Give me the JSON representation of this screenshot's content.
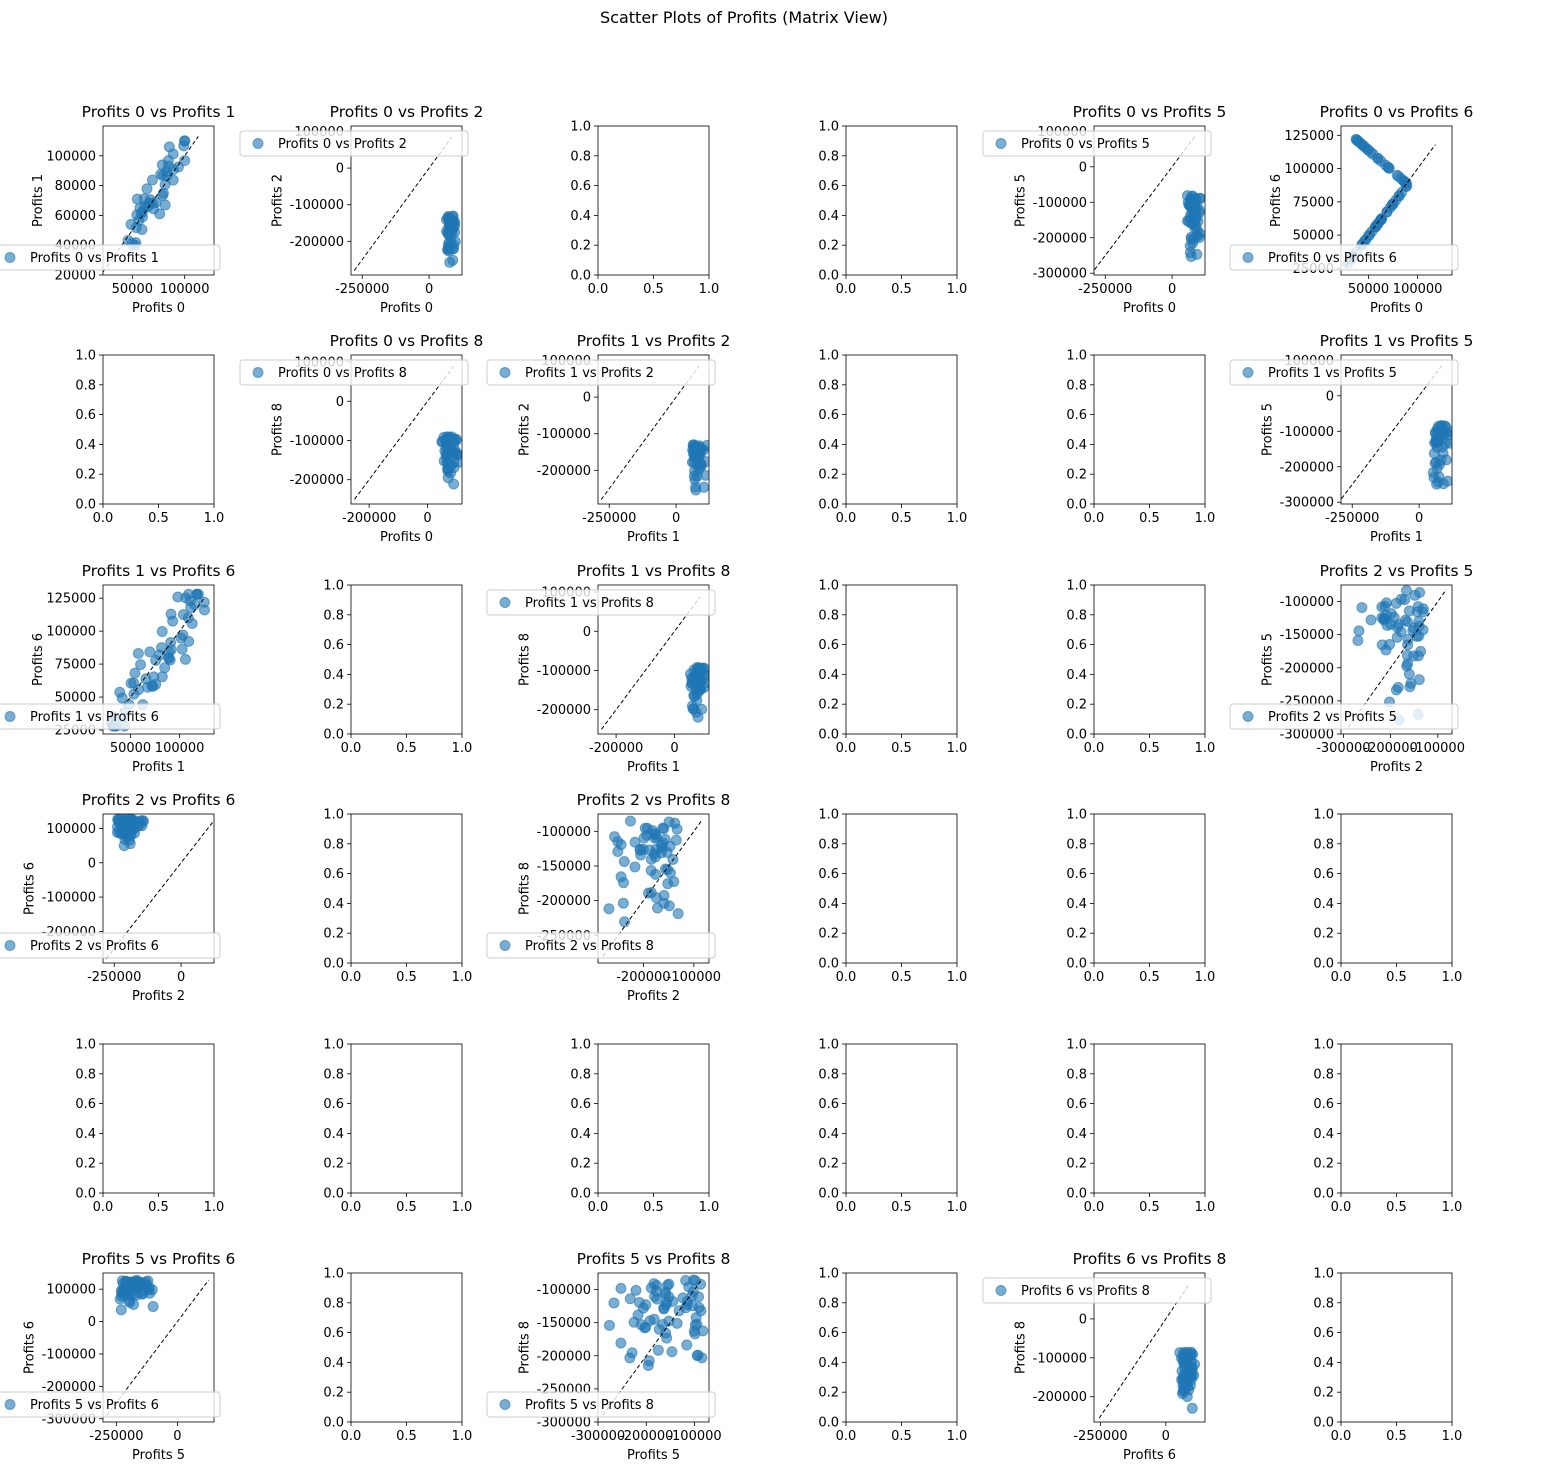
{
  "figure": {
    "suptitle": "Scatter Plots of Profits (Matrix View)",
    "point_color": "#1f77b4",
    "reference_line_color": "#000000",
    "legend_edge_color": "#cccccc",
    "empty_axis_ticks": [
      "0.0",
      "0.5",
      "1.0"
    ],
    "empty_axis_yticks": [
      "0.0",
      "0.2",
      "0.4",
      "0.6",
      "0.8",
      "1.0"
    ]
  },
  "chart_data": [
    {
      "type": "scatter",
      "row": 0,
      "col": 0,
      "title": "Profits 0 vs Profits 1",
      "xlabel": "Profits 0",
      "ylabel": "Profits 1",
      "legend": "Profits 0 vs Profits 1",
      "legend_loc": "lower-right",
      "xlim": [
        22000,
        128000
      ],
      "ylim": [
        20000,
        120000
      ],
      "xticks": [
        50000,
        100000
      ],
      "yticks": [
        20000,
        40000,
        60000,
        80000,
        100000
      ],
      "diag": [
        [
          22000,
          22000
        ],
        [
          113000,
          113000
        ]
      ],
      "cluster": {
        "cx": [
          45000,
          100000
        ],
        "cy": [
          40000,
          110000
        ],
        "n": 45,
        "mode": "corr"
      }
    },
    {
      "type": "scatter",
      "row": 0,
      "col": 1,
      "title": "Profits 0 vs Profits 2",
      "xlabel": "Profits 0",
      "ylabel": "Profits 2",
      "legend": "Profits 0 vs Profits 2",
      "legend_loc": "upper-right",
      "xlim": [
        -292000,
        123000
      ],
      "ylim": [
        -292000,
        115000
      ],
      "xticks": [
        -250000,
        0
      ],
      "yticks": [
        -200000,
        -100000,
        0,
        100000
      ],
      "diag": [
        [
          -280000,
          -280000
        ],
        [
          85000,
          85000
        ]
      ],
      "cluster": {
        "cx": [
          50000,
          110000
        ],
        "cy": [
          -280000,
          -130000
        ],
        "n": 50,
        "mode": "blob"
      }
    },
    {
      "type": "empty",
      "row": 0,
      "col": 2
    },
    {
      "type": "empty",
      "row": 0,
      "col": 3
    },
    {
      "type": "scatter",
      "row": 0,
      "col": 4,
      "title": "Profits 0 vs Profits 5",
      "xlabel": "Profits 0",
      "ylabel": "Profits 5",
      "legend": "Profits 0 vs Profits 5",
      "legend_loc": "upper-right",
      "xlim": [
        -292000,
        123000
      ],
      "ylim": [
        -305000,
        115000
      ],
      "xticks": [
        -250000,
        0
      ],
      "yticks": [
        -300000,
        -200000,
        -100000,
        0,
        100000
      ],
      "diag": [
        [
          -290000,
          -290000
        ],
        [
          88000,
          88000
        ]
      ],
      "cluster": {
        "cx": [
          40000,
          115000
        ],
        "cy": [
          -290000,
          -80000
        ],
        "n": 55,
        "mode": "blob"
      }
    },
    {
      "type": "scatter",
      "row": 0,
      "col": 5,
      "title": "Profits 0 vs Profits 6",
      "xlabel": "Profits 0",
      "ylabel": "Profits 6",
      "legend": "Profits 0 vs Profits 6",
      "legend_loc": "lower-right",
      "xlim": [
        22000,
        135000
      ],
      "ylim": [
        20000,
        132000
      ],
      "xticks": [
        50000,
        100000
      ],
      "yticks": [
        25000,
        50000,
        75000,
        100000,
        125000
      ],
      "diag": [
        [
          27000,
          27000
        ],
        [
          118000,
          118000
        ]
      ],
      "cluster": {
        "cx": [
          28000,
          90000
        ],
        "cy": [
          28000,
          128000
        ],
        "n": 60,
        "mode": "vee"
      }
    },
    {
      "type": "empty",
      "row": 1,
      "col": 0
    },
    {
      "type": "scatter",
      "row": 1,
      "col": 1,
      "title": "Profits 0 vs Profits 8",
      "xlabel": "Profits 0",
      "ylabel": "Profits 8",
      "legend": "Profits 0 vs Profits 8",
      "legend_loc": "upper-right",
      "xlim": [
        -262000,
        118000
      ],
      "ylim": [
        -262000,
        118000
      ],
      "xticks": [
        -200000,
        0
      ],
      "yticks": [
        -200000,
        -100000,
        0,
        100000
      ],
      "diag": [
        [
          -250000,
          -250000
        ],
        [
          88000,
          88000
        ]
      ],
      "cluster": {
        "cx": [
          30000,
          110000
        ],
        "cy": [
          -245000,
          -90000
        ],
        "n": 50,
        "mode": "blob"
      }
    },
    {
      "type": "scatter",
      "row": 1,
      "col": 2,
      "title": "Profits 1 vs Profits 2",
      "xlabel": "Profits 1",
      "ylabel": "Profits 2",
      "legend": "Profits 1 vs Profits 2",
      "legend_loc": "upper-right",
      "xlim": [
        -292000,
        123000
      ],
      "ylim": [
        -292000,
        115000
      ],
      "xticks": [
        -250000,
        0
      ],
      "yticks": [
        -200000,
        -100000,
        0,
        100000
      ],
      "diag": [
        [
          -280000,
          -280000
        ],
        [
          85000,
          85000
        ]
      ],
      "cluster": {
        "cx": [
          40000,
          120000
        ],
        "cy": [
          -280000,
          -130000
        ],
        "n": 50,
        "mode": "blob"
      }
    },
    {
      "type": "empty",
      "row": 1,
      "col": 3
    },
    {
      "type": "empty",
      "row": 1,
      "col": 4
    },
    {
      "type": "scatter",
      "row": 1,
      "col": 5,
      "title": "Profits 1 vs Profits 5",
      "xlabel": "Profits 1",
      "ylabel": "Profits 5",
      "legend": "Profits 1 vs Profits 5",
      "legend_loc": "upper-right",
      "xlim": [
        -292000,
        123000
      ],
      "ylim": [
        -305000,
        115000
      ],
      "xticks": [
        -250000,
        0
      ],
      "yticks": [
        -300000,
        -200000,
        -100000,
        0,
        100000
      ],
      "diag": [
        [
          -290000,
          -290000
        ],
        [
          88000,
          88000
        ]
      ],
      "cluster": {
        "cx": [
          30000,
          120000
        ],
        "cy": [
          -290000,
          -80000
        ],
        "n": 55,
        "mode": "blob"
      }
    },
    {
      "type": "scatter",
      "row": 2,
      "col": 0,
      "title": "Profits 1 vs Profits 6",
      "xlabel": "Profits 1",
      "ylabel": "Profits 6",
      "legend": "Profits 1 vs Profits 6",
      "legend_loc": "lower-right",
      "xlim": [
        22000,
        135000
      ],
      "ylim": [
        22000,
        135000
      ],
      "xticks": [
        50000,
        100000
      ],
      "yticks": [
        25000,
        50000,
        75000,
        100000,
        125000
      ],
      "diag": [
        [
          27000,
          27000
        ],
        [
          125000,
          125000
        ]
      ],
      "cluster": {
        "cx": [
          30000,
          128000
        ],
        "cy": [
          28000,
          128000
        ],
        "n": 60,
        "mode": "corr"
      }
    },
    {
      "type": "empty",
      "row": 2,
      "col": 1
    },
    {
      "type": "scatter",
      "row": 2,
      "col": 2,
      "title": "Profits 1 vs Profits 8",
      "xlabel": "Profits 1",
      "ylabel": "Profits 8",
      "legend": "Profits 1 vs Profits 8",
      "legend_loc": "upper-right",
      "xlim": [
        -262000,
        118000
      ],
      "ylim": [
        -262000,
        118000
      ],
      "xticks": [
        -200000,
        0
      ],
      "yticks": [
        -200000,
        -100000,
        0,
        100000
      ],
      "diag": [
        [
          -250000,
          -250000
        ],
        [
          88000,
          88000
        ]
      ],
      "cluster": {
        "cx": [
          30000,
          115000
        ],
        "cy": [
          -245000,
          -90000
        ],
        "n": 50,
        "mode": "blob"
      }
    },
    {
      "type": "empty",
      "row": 2,
      "col": 3
    },
    {
      "type": "empty",
      "row": 2,
      "col": 4
    },
    {
      "type": "scatter",
      "row": 2,
      "col": 5,
      "title": "Profits 2 vs Profits 5",
      "xlabel": "Profits 2",
      "ylabel": "Profits 5",
      "legend": "Profits 2 vs Profits 5",
      "legend_loc": "lower-right",
      "xlim": [
        -305000,
        -70000
      ],
      "ylim": [
        -300000,
        -75000
      ],
      "xticks": [
        -300000,
        -200000,
        -100000
      ],
      "yticks": [
        -300000,
        -250000,
        -200000,
        -150000,
        -100000
      ],
      "diag": [
        [
          -290000,
          -290000
        ],
        [
          -82000,
          -82000
        ]
      ],
      "cluster": {
        "cx": [
          -290000,
          -130000
        ],
        "cy": [
          -290000,
          -80000
        ],
        "n": 60,
        "mode": "spread"
      }
    },
    {
      "type": "scatter",
      "row": 3,
      "col": 0,
      "title": "Profits 2 vs Profits 6",
      "xlabel": "Profits 2",
      "ylabel": "Profits 6",
      "legend": "Profits 2 vs Profits 6",
      "legend_loc": "lower-right",
      "xlim": [
        -292000,
        123000
      ],
      "ylim": [
        -292000,
        142000
      ],
      "xticks": [
        -250000,
        0
      ],
      "yticks": [
        -200000,
        -100000,
        0,
        100000
      ],
      "diag": [
        [
          -280000,
          -280000
        ],
        [
          125000,
          125000
        ]
      ],
      "cluster": {
        "cx": [
          -280000,
          -130000
        ],
        "cy": [
          30000,
          128000
        ],
        "n": 60,
        "mode": "blob"
      }
    },
    {
      "type": "empty",
      "row": 3,
      "col": 1
    },
    {
      "type": "scatter",
      "row": 3,
      "col": 2,
      "title": "Profits 2 vs Profits 8",
      "xlabel": "Profits 2",
      "ylabel": "Profits 8",
      "legend": "Profits 2 vs Profits 8",
      "legend_loc": "lower-right",
      "xlim": [
        -290000,
        -70000
      ],
      "ylim": [
        -290000,
        -75000
      ],
      "xticks": [
        -200000,
        -100000
      ],
      "yticks": [
        -250000,
        -200000,
        -150000,
        -100000
      ],
      "diag": [
        [
          -280000,
          -280000
        ],
        [
          -85000,
          -85000
        ]
      ],
      "cluster": {
        "cx": [
          -280000,
          -130000
        ],
        "cy": [
          -250000,
          -85000
        ],
        "n": 60,
        "mode": "spread"
      }
    },
    {
      "type": "empty",
      "row": 3,
      "col": 3
    },
    {
      "type": "empty",
      "row": 3,
      "col": 4
    },
    {
      "type": "empty",
      "row": 3,
      "col": 5
    },
    {
      "type": "empty",
      "row": 4,
      "col": 0
    },
    {
      "type": "empty",
      "row": 4,
      "col": 1
    },
    {
      "type": "empty",
      "row": 4,
      "col": 2
    },
    {
      "type": "empty",
      "row": 4,
      "col": 3
    },
    {
      "type": "empty",
      "row": 4,
      "col": 4
    },
    {
      "type": "empty",
      "row": 4,
      "col": 5
    },
    {
      "type": "scatter",
      "row": 5,
      "col": 0,
      "title": "Profits 5 vs Profits 6",
      "xlabel": "Profits 5",
      "ylabel": "Profits 6",
      "legend": "Profits 5 vs Profits 6",
      "legend_loc": "lower-right",
      "xlim": [
        -305000,
        150000
      ],
      "ylim": [
        -310000,
        150000
      ],
      "xticks": [
        -250000,
        0
      ],
      "yticks": [
        -300000,
        -200000,
        -100000,
        0,
        100000
      ],
      "diag": [
        [
          -290000,
          -290000
        ],
        [
          128000,
          128000
        ]
      ],
      "cluster": {
        "cx": [
          -290000,
          -80000
        ],
        "cy": [
          30000,
          128000
        ],
        "n": 60,
        "mode": "blob"
      }
    },
    {
      "type": "empty",
      "row": 5,
      "col": 1
    },
    {
      "type": "scatter",
      "row": 5,
      "col": 2,
      "title": "Profits 5 vs Profits 8",
      "xlabel": "Profits 5",
      "ylabel": "Profits 8",
      "legend": "Profits 5 vs Profits 8",
      "legend_loc": "lower-right",
      "xlim": [
        -300000,
        -70000
      ],
      "ylim": [
        -300000,
        -75000
      ],
      "xticks": [
        -300000,
        -200000,
        -100000
      ],
      "yticks": [
        -300000,
        -250000,
        -200000,
        -150000,
        -100000
      ],
      "diag": [
        [
          -290000,
          -290000
        ],
        [
          -85000,
          -85000
        ]
      ],
      "cluster": {
        "cx": [
          -290000,
          -80000
        ],
        "cy": [
          -250000,
          -85000
        ],
        "n": 70,
        "mode": "spread"
      }
    },
    {
      "type": "empty",
      "row": 5,
      "col": 3
    },
    {
      "type": "scatter",
      "row": 5,
      "col": 4,
      "title": "Profits 6 vs Profits 8",
      "xlabel": "Profits 6",
      "ylabel": "Profits 8",
      "legend": "Profits 6 vs Profits 8",
      "legend_loc": "upper-right",
      "xlim": [
        -275000,
        150000
      ],
      "ylim": [
        -265000,
        118000
      ],
      "xticks": [
        -250000,
        0
      ],
      "yticks": [
        -200000,
        -100000,
        0
      ],
      "diag": [
        [
          -255000,
          -255000
        ],
        [
          90000,
          90000
        ]
      ],
      "cluster": {
        "cx": [
          30000,
          128000
        ],
        "cy": [
          -250000,
          -85000
        ],
        "n": 55,
        "mode": "blob"
      }
    },
    {
      "type": "empty",
      "row": 5,
      "col": 5
    }
  ]
}
